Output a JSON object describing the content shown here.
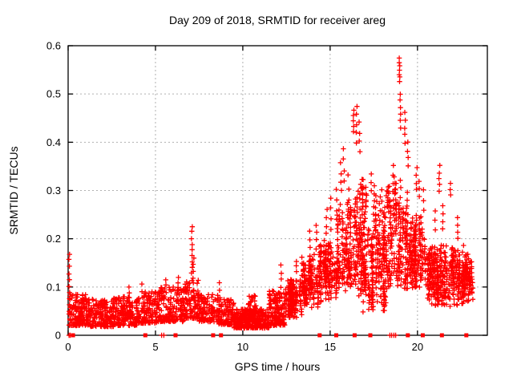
{
  "chart_data": {
    "type": "scatter",
    "title": "Day 209 of 2018, SRMTID for receiver areg",
    "xlabel": "GPS time / hours",
    "ylabel": "SRMTID / TECUs",
    "xlim": [
      0,
      24
    ],
    "ylim": [
      0,
      0.6
    ],
    "xticks": [
      0,
      5,
      10,
      15,
      20
    ],
    "yticks": [
      0,
      0.1,
      0.2,
      0.3,
      0.4,
      0.5,
      0.6
    ],
    "grid": true,
    "grid_style": "dashed-gray",
    "legend": "none",
    "marker": {
      "shape": "plus",
      "color": "#ff0000",
      "size": 7
    },
    "zero_marker": {
      "shape": "filled-square",
      "color": "#ff0000",
      "size": 5
    },
    "colors": {
      "points": "#ff0000",
      "axis": "#000000",
      "grid": "#b0b0b0",
      "background": "#ffffff"
    },
    "band_segments": [
      [
        0.05,
        0.35,
        0.02,
        0.1,
        25,
        0
      ],
      [
        0.35,
        1.2,
        0.02,
        0.085,
        120,
        0
      ],
      [
        1.2,
        2.6,
        0.018,
        0.075,
        170,
        0
      ],
      [
        2.6,
        4.1,
        0.02,
        0.08,
        180,
        0
      ],
      [
        4.1,
        5.2,
        0.025,
        0.09,
        120,
        0
      ],
      [
        5.2,
        6.6,
        0.028,
        0.1,
        150,
        0
      ],
      [
        6.6,
        7.5,
        0.035,
        0.115,
        100,
        0
      ],
      [
        7.5,
        8.6,
        0.028,
        0.085,
        110,
        0
      ],
      [
        8.6,
        9.5,
        0.022,
        0.075,
        110,
        0
      ],
      [
        9.5,
        11.5,
        0.015,
        0.055,
        300,
        0
      ],
      [
        10.3,
        10.75,
        0.03,
        0.085,
        45,
        0
      ],
      [
        11.5,
        12.4,
        0.02,
        0.095,
        140,
        0
      ],
      [
        12.4,
        13.4,
        0.035,
        0.13,
        150,
        1
      ],
      [
        13.4,
        14.4,
        0.055,
        0.18,
        150,
        1
      ],
      [
        14.4,
        15.4,
        0.07,
        0.215,
        150,
        1
      ],
      [
        15.4,
        16.2,
        0.09,
        0.29,
        140,
        1
      ],
      [
        16.2,
        17.1,
        0.08,
        0.34,
        160,
        1
      ],
      [
        17.1,
        18.3,
        0.05,
        0.31,
        210,
        1
      ],
      [
        18.3,
        19.6,
        0.09,
        0.34,
        210,
        1
      ],
      [
        19.6,
        20.6,
        0.1,
        0.28,
        150,
        1
      ],
      [
        20.6,
        21.6,
        0.06,
        0.2,
        200,
        1
      ],
      [
        21.6,
        22.6,
        0.06,
        0.2,
        140,
        1
      ],
      [
        22.6,
        23.15,
        0.07,
        0.19,
        100,
        1
      ]
    ],
    "spike_chains": [
      [
        0.07,
        0.02,
        0.17,
        12
      ],
      [
        3.5,
        0.08,
        0.1,
        3
      ],
      [
        4.25,
        0.08,
        0.105,
        3
      ],
      [
        5.6,
        0.09,
        0.115,
        3
      ],
      [
        6.3,
        0.09,
        0.12,
        4
      ],
      [
        7.08,
        0.13,
        0.225,
        9
      ],
      [
        7.18,
        0.12,
        0.16,
        4
      ],
      [
        8.68,
        0.08,
        0.11,
        3
      ],
      [
        12.18,
        0.1,
        0.145,
        4
      ],
      [
        13.05,
        0.13,
        0.155,
        3
      ],
      [
        13.85,
        0.18,
        0.215,
        3
      ],
      [
        14.2,
        0.18,
        0.23,
        4
      ],
      [
        14.8,
        0.21,
        0.26,
        4
      ],
      [
        15.05,
        0.22,
        0.285,
        4
      ],
      [
        15.35,
        0.24,
        0.3,
        4
      ],
      [
        15.62,
        0.3,
        0.355,
        4
      ],
      [
        15.78,
        0.32,
        0.385,
        4
      ],
      [
        16.05,
        0.28,
        0.33,
        3
      ],
      [
        16.35,
        0.42,
        0.465,
        5
      ],
      [
        16.52,
        0.4,
        0.475,
        5
      ],
      [
        16.68,
        0.38,
        0.44,
        4
      ],
      [
        16.9,
        0.05,
        0.15,
        6
      ],
      [
        17.35,
        0.3,
        0.335,
        3
      ],
      [
        17.55,
        0.28,
        0.31,
        3
      ],
      [
        17.95,
        0.26,
        0.3,
        3
      ],
      [
        18.6,
        0.3,
        0.35,
        4
      ],
      [
        18.97,
        0.525,
        0.575,
        7
      ],
      [
        19.02,
        0.43,
        0.5,
        6
      ],
      [
        19.28,
        0.4,
        0.46,
        5
      ],
      [
        19.45,
        0.35,
        0.4,
        4
      ],
      [
        19.95,
        0.3,
        0.345,
        4
      ],
      [
        20.1,
        0.29,
        0.32,
        3
      ],
      [
        20.35,
        0.26,
        0.3,
        3
      ],
      [
        21.0,
        0.22,
        0.26,
        3
      ],
      [
        21.25,
        0.3,
        0.35,
        5
      ],
      [
        21.45,
        0.22,
        0.27,
        4
      ],
      [
        21.9,
        0.29,
        0.315,
        3
      ],
      [
        22.3,
        0.2,
        0.245,
        4
      ]
    ],
    "zero_square_markers_x": [
      0.28,
      4.42,
      6.15,
      8.3,
      8.75,
      14.4,
      15.35,
      16.4,
      17.3,
      19.45,
      20.3,
      21.4,
      22.8
    ],
    "zero_plus_markers_x": [
      0.05,
      0.12,
      5.35,
      5.48,
      18.42,
      18.52,
      18.65,
      18.75
    ]
  }
}
